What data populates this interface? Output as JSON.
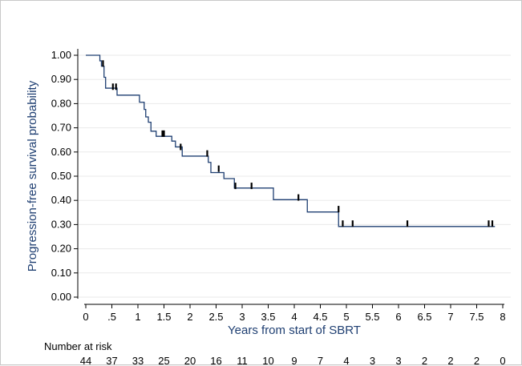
{
  "chart_data": {
    "type": "line",
    "title": "",
    "xlabel": "Years from start of SBRT",
    "ylabel": "Progression-free survival probability",
    "xlim": [
      0,
      8
    ],
    "ylim": [
      0,
      1
    ],
    "grid": true,
    "x_ticks": [
      {
        "value": 0,
        "label": "0"
      },
      {
        "value": 0.5,
        "label": ".5"
      },
      {
        "value": 1,
        "label": "1"
      },
      {
        "value": 1.5,
        "label": "1.5"
      },
      {
        "value": 2,
        "label": "2"
      },
      {
        "value": 2.5,
        "label": "2.5"
      },
      {
        "value": 3,
        "label": "3"
      },
      {
        "value": 3.5,
        "label": "3.5"
      },
      {
        "value": 4,
        "label": "4"
      },
      {
        "value": 4.5,
        "label": "4.5"
      },
      {
        "value": 5,
        "label": "5"
      },
      {
        "value": 5.5,
        "label": "5.5"
      },
      {
        "value": 6,
        "label": "6"
      },
      {
        "value": 6.5,
        "label": "6.5"
      },
      {
        "value": 7,
        "label": "7"
      },
      {
        "value": 7.5,
        "label": "7.5"
      },
      {
        "value": 8,
        "label": "8"
      }
    ],
    "y_ticks": [
      {
        "value": 0.0,
        "label": "0.00"
      },
      {
        "value": 0.1,
        "label": "0.10"
      },
      {
        "value": 0.2,
        "label": "0.20"
      },
      {
        "value": 0.3,
        "label": "0.30"
      },
      {
        "value": 0.4,
        "label": "0.40"
      },
      {
        "value": 0.5,
        "label": "0.50"
      },
      {
        "value": 0.6,
        "label": "0.60"
      },
      {
        "value": 0.7,
        "label": "0.70"
      },
      {
        "value": 0.8,
        "label": "0.80"
      },
      {
        "value": 0.9,
        "label": "0.90"
      },
      {
        "value": 1.0,
        "label": "1.00"
      }
    ],
    "series": [
      {
        "color": "#1f3f72",
        "steps": [
          [
            0,
            1.0
          ],
          [
            0.27,
            0.977
          ],
          [
            0.3,
            0.955
          ],
          [
            0.35,
            0.909
          ],
          [
            0.38,
            0.864
          ],
          [
            0.6,
            0.835
          ],
          [
            1.03,
            0.806
          ],
          [
            1.12,
            0.776
          ],
          [
            1.15,
            0.745
          ],
          [
            1.2,
            0.723
          ],
          [
            1.25,
            0.686
          ],
          [
            1.35,
            0.665
          ],
          [
            1.65,
            0.645
          ],
          [
            1.72,
            0.621
          ],
          [
            1.85,
            0.583
          ],
          [
            2.35,
            0.557
          ],
          [
            2.4,
            0.515
          ],
          [
            2.65,
            0.49
          ],
          [
            2.85,
            0.451
          ],
          [
            3.6,
            0.403
          ],
          [
            4.25,
            0.352
          ],
          [
            4.85,
            0.292
          ],
          [
            7.85,
            0.292
          ]
        ],
        "censored": [
          [
            0.33,
            0.966
          ],
          [
            0.52,
            0.87
          ],
          [
            0.58,
            0.87
          ],
          [
            1.47,
            0.676
          ],
          [
            1.5,
            0.676
          ],
          [
            1.82,
            0.621
          ],
          [
            2.33,
            0.594
          ],
          [
            2.55,
            0.531
          ],
          [
            2.87,
            0.46
          ],
          [
            3.18,
            0.46
          ],
          [
            4.08,
            0.412
          ],
          [
            4.85,
            0.364
          ],
          [
            4.93,
            0.304
          ],
          [
            5.12,
            0.304
          ],
          [
            6.17,
            0.304
          ],
          [
            7.73,
            0.304
          ],
          [
            7.8,
            0.304
          ]
        ]
      }
    ],
    "risk_table": {
      "label": "Number at risk",
      "values": [
        44,
        37,
        33,
        25,
        20,
        16,
        11,
        10,
        9,
        7,
        4,
        3,
        3,
        2,
        2,
        2,
        0
      ]
    }
  }
}
